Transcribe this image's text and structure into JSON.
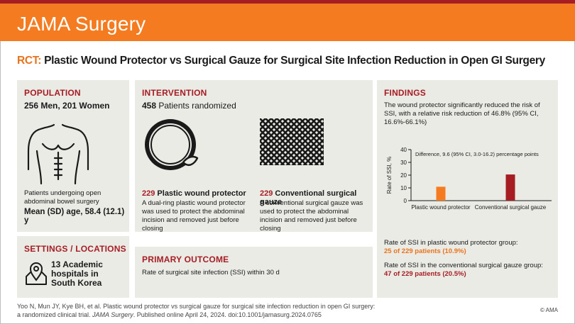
{
  "header": {
    "brand": "JAMA Surgery"
  },
  "title": {
    "prefix": "RCT:",
    "text": "Plastic Wound Protector vs Surgical Gauze for Surgical Site Infection Reduction in Open GI Surgery"
  },
  "population": {
    "heading": "POPULATION",
    "counts": "256 Men, 201 Women",
    "description": "Patients undergoing open abdominal bowel surgery",
    "age": "Mean (SD) age, 58.4 (12.1) y",
    "icon": "torso-icon"
  },
  "settings": {
    "heading": "SETTINGS / LOCATIONS",
    "text": "13 Academic hospitals in South Korea",
    "line1": "13 Academic",
    "line2": "hospitals in",
    "line3": "South Korea",
    "icon": "map-pin-icon"
  },
  "intervention": {
    "heading": "INTERVENTION",
    "count": "458",
    "count_label": "Patients randomized",
    "arm1": {
      "n": "229",
      "name": "Plastic wound protector",
      "description": "A dual-ring plastic wound protector was used to protect the abdominal incision and removed just before closing",
      "icon": "wound-protector-icon"
    },
    "arm2": {
      "n": "229",
      "name": "Conventional surgical gauze",
      "description": "A conventional surgical gauze was used to protect the abdominal incision and removed just before closing",
      "icon": "gauze-icon"
    }
  },
  "primary_outcome": {
    "heading": "PRIMARY OUTCOME",
    "text": "Rate of surgical site infection (SSI) within 30 d"
  },
  "findings": {
    "heading": "FINDINGS",
    "summary": "The wound protector significantly reduced the risk of SSI, with a relative risk reduction of 46.8% (95% CI, 16.6%-66.1%)",
    "group1_label": "Rate of SSI in plastic wound protector group:",
    "group1_value": "25 of 229 patients (10.9%)",
    "group2_label": "Rate of SSI in the conventional surgical gauze group:",
    "group2_value": "47 of 229 patients (20.5%)"
  },
  "chart_data": {
    "type": "bar",
    "categories": [
      "Plastic wound protector",
      "Conventional surgical gauze"
    ],
    "values": [
      10.9,
      20.5
    ],
    "colors": [
      "#f47b20",
      "#a61d24"
    ],
    "ylabel": "Rate of SSI, %",
    "ylim": [
      0,
      40
    ],
    "yticks": [
      0,
      10,
      20,
      30,
      40
    ],
    "annotation": "Difference, 9.6 (95% CI, 3.0-16.2) percentage points"
  },
  "footer": {
    "citation_line1": "Yoo N, Mun JY, Kye BH, et al. Plastic wound protector vs surgical gauze for surgical site infection reduction in open GI surgery:",
    "citation_line2_pre": "a randomized clinical trial. ",
    "citation_journal": "JAMA Surgery",
    "citation_line2_post": ". Published online April 24, 2024. doi:10.1001/jamasurg.2024.0765",
    "copyright": "© AMA"
  }
}
